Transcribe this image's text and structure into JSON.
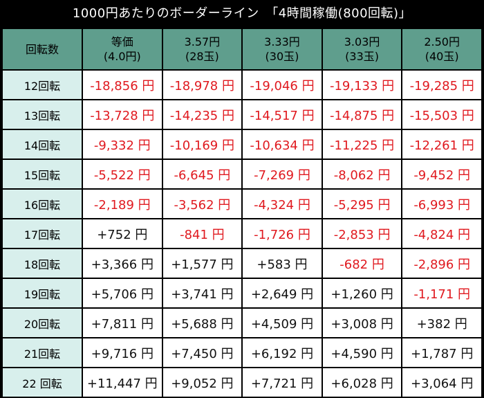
{
  "title": "1000円あたりのボーダーライン　「4時間稼働(800回転)」",
  "header": {
    "corner": "回転数",
    "columns": [
      {
        "line1": "等価",
        "line2": "(4.0円)"
      },
      {
        "line1": "3.57円",
        "line2": "(28玉)"
      },
      {
        "line1": "3.33円",
        "line2": "(30玉)"
      },
      {
        "line1": "3.03円",
        "line2": "(33玉)"
      },
      {
        "line1": "2.50円",
        "line2": "(40玉)"
      }
    ]
  },
  "rows": [
    {
      "label": "12回転",
      "values": [
        "-18,856 円",
        "-18,978 円",
        "-19,046 円",
        "-19,133 円",
        "-19,285 円"
      ]
    },
    {
      "label": "13回転",
      "values": [
        "-13,728 円",
        "-14,235 円",
        "-14,517 円",
        "-14,875 円",
        "-15,503 円"
      ]
    },
    {
      "label": "14回転",
      "values": [
        "-9,332 円",
        "-10,169 円",
        "-10,634 円",
        "-11,225 円",
        "-12,261 円"
      ]
    },
    {
      "label": "15回転",
      "values": [
        "-5,522 円",
        "-6,645 円",
        "-7,269 円",
        "-8,062 円",
        "-9,452 円"
      ]
    },
    {
      "label": "16回転",
      "values": [
        "-2,189 円",
        "-3,562 円",
        "-4,324 円",
        "-5,295 円",
        "-6,993 円"
      ]
    },
    {
      "label": "17回転",
      "values": [
        "+752 円",
        "-841 円",
        "-1,726 円",
        "-2,853 円",
        "-4,824 円"
      ]
    },
    {
      "label": "18回転",
      "values": [
        "+3,366 円",
        "+1,577 円",
        "+583 円",
        "-682 円",
        "-2,896 円"
      ]
    },
    {
      "label": "19回転",
      "values": [
        "+5,706 円",
        "+3,741 円",
        "+2,649 円",
        "+1,260 円",
        "-1,171 円"
      ]
    },
    {
      "label": "20回転",
      "values": [
        "+7,811 円",
        "+5,688 円",
        "+4,509 円",
        "+3,008 円",
        "+382 円"
      ]
    },
    {
      "label": "21回転",
      "values": [
        "+9,716 円",
        "+7,450 円",
        "+6,192 円",
        "+4,590 円",
        "+1,787 円"
      ]
    },
    {
      "label": "22 回転",
      "values": [
        "+11,447 円",
        "+9,052 円",
        "+7,721 円",
        "+6,028 円",
        "+3,064 円"
      ]
    }
  ],
  "colors": {
    "negative": "#e0191f",
    "positive": "#111111",
    "header_bg": "#5f9e8d",
    "row_label_bg": "#d8efec"
  }
}
